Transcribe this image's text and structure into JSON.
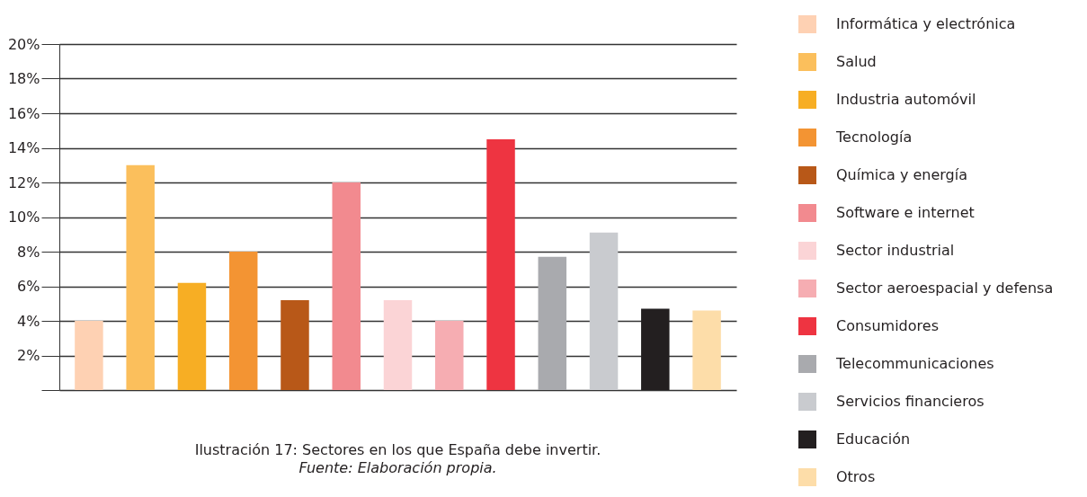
{
  "chart_data": {
    "type": "bar",
    "title": "Ilustración 17: Sectores en los que España debe invertir.",
    "annotations": [
      "Fuente: Elaboración propia."
    ],
    "categories": [
      null
    ],
    "series": [
      {
        "name": "Informática y electrónica",
        "color": "#fed1b3",
        "values": [
          4.0
        ]
      },
      {
        "name": "Salud",
        "color": "#fbbf5c",
        "values": [
          13.0
        ]
      },
      {
        "name": "Industria automóvil",
        "color": "#f7ae24",
        "values": [
          6.2
        ]
      },
      {
        "name": "Tecnología",
        "color": "#f39433",
        "values": [
          8.0
        ]
      },
      {
        "name": "Química y energía",
        "color": "#b85818",
        "values": [
          5.2
        ]
      },
      {
        "name": "Software e internet",
        "color": "#f28a8f",
        "values": [
          12.0
        ]
      },
      {
        "name": "Sector industrial",
        "color": "#fbd4d6",
        "values": [
          5.2
        ]
      },
      {
        "name": "Sector aeroespacial y defensa",
        "color": "#f6adb2",
        "values": [
          4.0
        ]
      },
      {
        "name": "Consumidores",
        "color": "#ee3441",
        "values": [
          14.5
        ]
      },
      {
        "name": "Telecommunicaciones",
        "color": "#a9aaae",
        "values": [
          7.7
        ]
      },
      {
        "name": "Servicios financieros",
        "color": "#c9cbcf",
        "values": [
          9.1
        ]
      },
      {
        "name": "Educación",
        "color": "#231f20",
        "values": [
          4.7
        ]
      },
      {
        "name": "Otros",
        "color": "#fddda9",
        "values": [
          4.6
        ]
      }
    ],
    "ylim": [
      0,
      20
    ],
    "yticks": [
      {
        "value": 0,
        "label": null
      },
      {
        "value": 2,
        "label": "2%"
      },
      {
        "value": 4,
        "label": "4%"
      },
      {
        "value": 6,
        "label": "6%"
      },
      {
        "value": 8,
        "label": "8%"
      },
      {
        "value": 10,
        "label": "10%"
      },
      {
        "value": 12,
        "label": "12%"
      },
      {
        "value": 14,
        "label": "14%"
      },
      {
        "value": 16,
        "label": "16%"
      },
      {
        "value": 18,
        "label": "18%"
      },
      {
        "value": 20,
        "label": "20%"
      }
    ],
    "grid": "y",
    "legend": "right",
    "tick_labels": "y"
  }
}
